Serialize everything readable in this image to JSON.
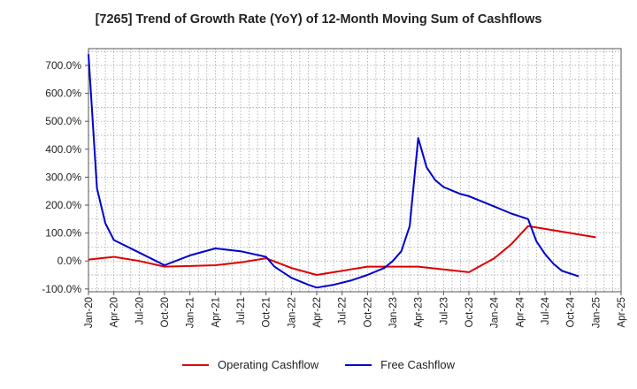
{
  "chart_data": {
    "type": "line",
    "title": "[7265]  Trend of Growth Rate (YoY) of 12-Month Moving Sum of Cashflows",
    "xlabel": "",
    "ylabel": "",
    "ylim": [
      -110,
      760
    ],
    "yticks": [
      -100,
      0,
      100,
      200,
      300,
      400,
      500,
      600,
      700
    ],
    "ytick_labels": [
      "-100.0%",
      "0.0%",
      "100.0%",
      "200.0%",
      "300.0%",
      "400.0%",
      "500.0%",
      "600.0%",
      "700.0%"
    ],
    "xtick_labels": [
      "Jan-20",
      "Apr-20",
      "Jul-20",
      "Oct-20",
      "Jan-21",
      "Apr-21",
      "Jul-21",
      "Oct-21",
      "Jan-22",
      "Apr-22",
      "Jul-22",
      "Oct-22",
      "Jan-23",
      "Apr-23",
      "Jul-23",
      "Oct-23",
      "Jan-24",
      "Apr-24",
      "Jul-24",
      "Oct-24",
      "Jan-25",
      "Apr-25"
    ],
    "grid": true,
    "legend_position": "bottom",
    "series": [
      {
        "name": "Operating Cashflow",
        "color": "#dd0000",
        "points": [
          [
            0,
            5
          ],
          [
            3,
            15
          ],
          [
            6,
            0
          ],
          [
            9,
            -20
          ],
          [
            12,
            -18
          ],
          [
            15,
            -15
          ],
          [
            18,
            -5
          ],
          [
            21,
            10
          ],
          [
            24,
            -25
          ],
          [
            27,
            -50
          ],
          [
            30,
            -35
          ],
          [
            33,
            -20
          ],
          [
            36,
            -20
          ],
          [
            39,
            -20
          ],
          [
            42,
            -30
          ],
          [
            45,
            -40
          ],
          [
            48,
            10
          ],
          [
            50,
            60
          ],
          [
            52,
            125
          ],
          [
            54,
            115
          ],
          [
            57,
            100
          ],
          [
            60,
            85
          ]
        ]
      },
      {
        "name": "Free Cashflow",
        "color": "#0000cc",
        "points": [
          [
            0,
            740
          ],
          [
            1,
            260
          ],
          [
            2,
            135
          ],
          [
            3,
            75
          ],
          [
            6,
            30
          ],
          [
            9,
            -15
          ],
          [
            12,
            20
          ],
          [
            15,
            45
          ],
          [
            18,
            35
          ],
          [
            21,
            15
          ],
          [
            22,
            -20
          ],
          [
            24,
            -60
          ],
          [
            26,
            -85
          ],
          [
            27,
            -95
          ],
          [
            29,
            -85
          ],
          [
            31,
            -70
          ],
          [
            33,
            -50
          ],
          [
            35,
            -25
          ],
          [
            36,
            0
          ],
          [
            37,
            35
          ],
          [
            38,
            125
          ],
          [
            39,
            440
          ],
          [
            40,
            335
          ],
          [
            41,
            290
          ],
          [
            42,
            265
          ],
          [
            44,
            240
          ],
          [
            45,
            232
          ],
          [
            48,
            195
          ],
          [
            50,
            170
          ],
          [
            52,
            150
          ],
          [
            53,
            70
          ],
          [
            54,
            25
          ],
          [
            55,
            -10
          ],
          [
            56,
            -35
          ],
          [
            58,
            -55
          ]
        ]
      }
    ]
  }
}
